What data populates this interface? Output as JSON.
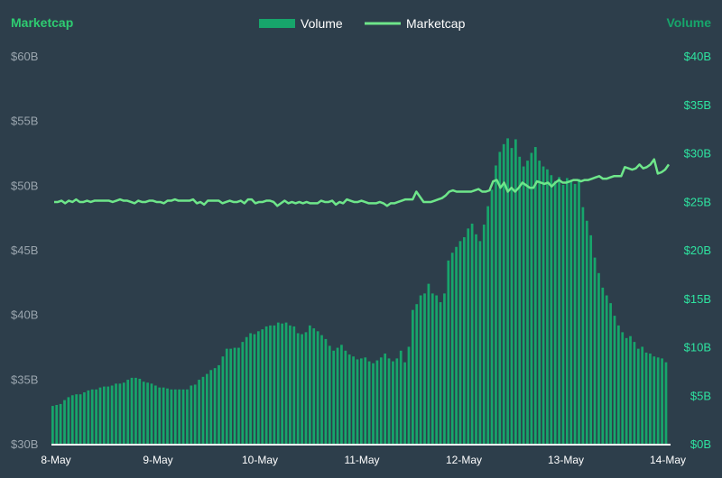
{
  "chart_data": {
    "type": "bar",
    "title": "",
    "left_axis": {
      "title": "Marketcap",
      "range": [
        30,
        60
      ],
      "ticks": [
        "$30B",
        "$35B",
        "$40B",
        "$45B",
        "$50B",
        "$55B",
        "$60B"
      ]
    },
    "right_axis": {
      "title": "Volume",
      "range": [
        0,
        40
      ],
      "ticks": [
        "$0B",
        "$5B",
        "$10B",
        "$15B",
        "$20B",
        "$25B",
        "$30B",
        "$35B",
        "$40B"
      ]
    },
    "x_axis": {
      "categories": [
        "8-May",
        "9-May",
        "10-May",
        "11-May",
        "12-May",
        "13-May",
        "14-May"
      ]
    },
    "legend": {
      "placement": "top-center",
      "items": [
        {
          "label": "Volume",
          "kind": "bar",
          "color": "#17a56b"
        },
        {
          "label": "Marketcap",
          "kind": "line",
          "color": "#6ee68a"
        }
      ]
    },
    "colors": {
      "volume": "#17a56b",
      "marketcap": "#6ee68a",
      "background": "#2d3e4b"
    },
    "series": [
      {
        "name": "Volume",
        "axis": "right",
        "unit": "B USD",
        "values": [
          3.9,
          4.0,
          4.1,
          4.5,
          4.8,
          5.0,
          5.1,
          5.1,
          5.3,
          5.5,
          5.6,
          5.6,
          5.8,
          5.9,
          5.9,
          6.0,
          6.2,
          6.2,
          6.3,
          6.6,
          6.8,
          6.8,
          6.7,
          6.4,
          6.3,
          6.2,
          6.0,
          5.8,
          5.8,
          5.7,
          5.6,
          5.6,
          5.6,
          5.6,
          5.6,
          6.0,
          6.1,
          6.6,
          6.9,
          7.2,
          7.6,
          7.8,
          8.1,
          9.0,
          9.8,
          9.8,
          9.9,
          9.9,
          10.5,
          11.0,
          11.4,
          11.3,
          11.6,
          11.8,
          12.1,
          12.2,
          12.2,
          12.5,
          12.4,
          12.5,
          12.2,
          12.1,
          11.4,
          11.3,
          11.5,
          12.2,
          11.9,
          11.6,
          11.2,
          10.8,
          10.1,
          9.6,
          9.9,
          10.2,
          9.6,
          9.2,
          9.0,
          8.7,
          8.8,
          8.9,
          8.5,
          8.3,
          8.6,
          8.9,
          9.3,
          8.8,
          8.5,
          8.8,
          9.6,
          8.4,
          10.0,
          13.8,
          14.4,
          15.3,
          15.5,
          16.5,
          15.5,
          15.3,
          14.6,
          15.5,
          18.9,
          19.7,
          20.3,
          20.9,
          21.3,
          22.2,
          22.7,
          21.6,
          20.9,
          22.6,
          24.5,
          26.2,
          28.7,
          30.1,
          30.9,
          31.5,
          30.5,
          31.4,
          29.6,
          28.6,
          29.2,
          30.0,
          30.6,
          29.2,
          28.6,
          28.3,
          27.7,
          27.1,
          27.5,
          26.7,
          27.4,
          27.2,
          26.8,
          27.3,
          24.4,
          23.0,
          21.5,
          19.2,
          17.6,
          16.1,
          15.3,
          14.5,
          13.2,
          12.2,
          11.5,
          10.9,
          11.1,
          10.5,
          9.8,
          10.0,
          9.4,
          9.3,
          9.0,
          8.9,
          8.8,
          8.4
        ]
      },
      {
        "name": "Marketcap",
        "axis": "left",
        "unit": "B USD",
        "values": [
          48.7,
          48.7,
          48.8,
          48.6,
          48.8,
          48.7,
          48.9,
          48.7,
          48.7,
          48.8,
          48.7,
          48.8,
          48.8,
          48.8,
          48.8,
          48.8,
          48.7,
          48.8,
          48.9,
          48.8,
          48.8,
          48.7,
          48.6,
          48.8,
          48.7,
          48.7,
          48.8,
          48.8,
          48.7,
          48.7,
          48.6,
          48.8,
          48.8,
          48.9,
          48.8,
          48.8,
          48.8,
          48.8,
          48.9,
          48.6,
          48.7,
          48.5,
          48.8,
          48.8,
          48.8,
          48.8,
          48.6,
          48.7,
          48.8,
          48.7,
          48.7,
          48.8,
          48.6,
          48.9,
          48.9,
          48.6,
          48.7,
          48.7,
          48.8,
          48.8,
          48.7,
          48.4,
          48.6,
          48.8,
          48.6,
          48.7,
          48.6,
          48.7,
          48.6,
          48.7,
          48.6,
          48.6,
          48.6,
          48.8,
          48.7,
          48.7,
          48.8,
          48.5,
          48.7,
          48.6,
          48.9,
          48.8,
          48.7,
          48.7,
          48.8,
          48.7,
          48.6,
          48.6,
          48.6,
          48.7,
          48.6,
          48.4,
          48.6,
          48.6,
          48.7,
          48.8,
          48.9,
          48.9,
          48.9,
          49.5,
          49.1,
          48.7,
          48.7,
          48.7,
          48.8,
          48.9,
          49.0,
          49.2,
          49.5,
          49.6,
          49.5,
          49.5,
          49.5,
          49.5,
          49.5,
          49.6,
          49.7,
          49.5,
          49.5,
          49.6,
          50.3,
          50.4,
          49.8,
          50.2,
          49.5,
          49.8,
          49.5,
          49.8,
          50.2,
          50.0,
          49.8,
          49.8,
          50.3,
          50.2,
          50.1,
          50.2,
          49.9,
          50.2,
          50.4,
          50.2,
          50.2,
          50.3,
          50.4,
          50.4,
          50.3,
          50.4,
          50.4,
          50.5,
          50.6,
          50.7,
          50.5,
          50.5,
          50.6,
          50.7,
          50.7,
          50.7,
          51.4,
          51.3,
          51.2,
          51.3,
          51.6,
          51.3,
          51.4,
          51.6,
          52.0,
          50.9,
          51.0,
          51.2,
          51.6
        ]
      }
    ]
  }
}
